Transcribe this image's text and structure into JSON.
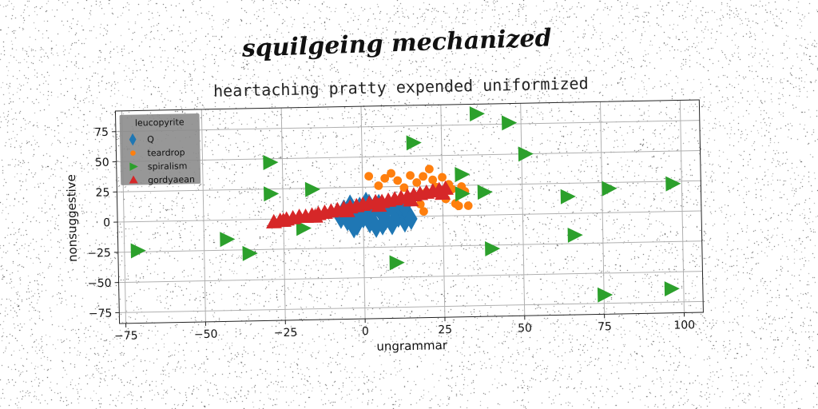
{
  "chart_data": {
    "type": "scatter",
    "suptitle": "squilgeing mechanized",
    "title": "heartaching pratty expended uniformized",
    "xlabel": "ungrammar",
    "ylabel": "nonsuggestive",
    "xlim": [
      -77,
      106
    ],
    "ylim": [
      -84,
      92
    ],
    "xticks": [
      -75,
      -50,
      -25,
      0,
      25,
      50,
      75,
      100
    ],
    "yticks": [
      -75,
      -50,
      -25,
      0,
      25,
      50,
      75
    ],
    "grid": true,
    "legend": {
      "title": "leucopyrite",
      "placement": "top-left"
    },
    "series": [
      {
        "name": "Q",
        "marker": "diamond",
        "color": "#1f77b4",
        "points": [
          [
            -6,
            6
          ],
          [
            -5,
            -2
          ],
          [
            -4,
            10
          ],
          [
            -3,
            2
          ],
          [
            -2,
            -6
          ],
          [
            -1,
            8
          ],
          [
            0,
            0
          ],
          [
            1,
            12
          ],
          [
            2,
            -4
          ],
          [
            3,
            4
          ],
          [
            4,
            -8
          ],
          [
            5,
            10
          ],
          [
            6,
            2
          ],
          [
            7,
            -2
          ],
          [
            8,
            8
          ],
          [
            9,
            -6
          ],
          [
            10,
            4
          ],
          [
            11,
            0
          ],
          [
            12,
            6
          ],
          [
            13,
            -4
          ],
          [
            14,
            2
          ],
          [
            -7,
            0
          ],
          [
            -3,
            -8
          ],
          [
            2,
            10
          ],
          [
            6,
            -6
          ],
          [
            10,
            10
          ],
          [
            13,
            8
          ],
          [
            15,
            -2
          ]
        ]
      },
      {
        "name": "teardrop",
        "color": "#ff7f0e",
        "marker": "circle",
        "points": [
          [
            2,
            34
          ],
          [
            5,
            26
          ],
          [
            7,
            32
          ],
          [
            9,
            36
          ],
          [
            11,
            30
          ],
          [
            13,
            24
          ],
          [
            15,
            34
          ],
          [
            17,
            28
          ],
          [
            19,
            33
          ],
          [
            20,
            20
          ],
          [
            21,
            39
          ],
          [
            22,
            30
          ],
          [
            24,
            18
          ],
          [
            25,
            32
          ],
          [
            26,
            14
          ],
          [
            27,
            26
          ],
          [
            28,
            22
          ],
          [
            29,
            10
          ],
          [
            30,
            8
          ],
          [
            31,
            24
          ],
          [
            32,
            20
          ],
          [
            33,
            8
          ],
          [
            18,
            10
          ],
          [
            16,
            16
          ],
          [
            23,
            24
          ],
          [
            14,
            12
          ],
          [
            19,
            4
          ]
        ]
      },
      {
        "name": "spiralism",
        "color": "#2ca02c",
        "marker": "triangle-right",
        "points": [
          [
            -71,
            -24
          ],
          [
            -43,
            -16
          ],
          [
            -36,
            -28
          ],
          [
            -29,
            47
          ],
          [
            -29,
            21
          ],
          [
            -19,
            -8
          ],
          [
            -16,
            24
          ],
          [
            10,
            -38
          ],
          [
            16,
            61
          ],
          [
            31,
            34
          ],
          [
            31,
            18
          ],
          [
            36,
            84
          ],
          [
            38,
            19
          ],
          [
            40,
            -28
          ],
          [
            46,
            76
          ],
          [
            51,
            50
          ],
          [
            64,
            14
          ],
          [
            66,
            -18
          ],
          [
            75,
            -68
          ],
          [
            77,
            20
          ],
          [
            96,
            -64
          ],
          [
            97,
            23
          ]
        ]
      },
      {
        "name": "gordyaean",
        "color": "#d62728",
        "marker": "triangle-up",
        "points": [
          [
            -28,
            -3
          ],
          [
            -26,
            -2
          ],
          [
            -24,
            -1
          ],
          [
            -22,
            0
          ],
          [
            -20,
            1
          ],
          [
            -18,
            1
          ],
          [
            -16,
            2
          ],
          [
            -14,
            3
          ],
          [
            -12,
            4
          ],
          [
            -10,
            5
          ],
          [
            -8,
            6
          ],
          [
            -6,
            7
          ],
          [
            -4,
            8
          ],
          [
            -2,
            9
          ],
          [
            0,
            10
          ],
          [
            2,
            11
          ],
          [
            4,
            12
          ],
          [
            6,
            12
          ],
          [
            8,
            13
          ],
          [
            10,
            14
          ],
          [
            12,
            15
          ],
          [
            14,
            16
          ],
          [
            16,
            17
          ],
          [
            18,
            18
          ],
          [
            20,
            19
          ],
          [
            22,
            20
          ],
          [
            24,
            21
          ],
          [
            26,
            22
          ],
          [
            -25,
            -2
          ],
          [
            -15,
            1
          ],
          [
            -5,
            5
          ],
          [
            5,
            9
          ],
          [
            15,
            13
          ],
          [
            25,
            18
          ]
        ]
      }
    ]
  }
}
